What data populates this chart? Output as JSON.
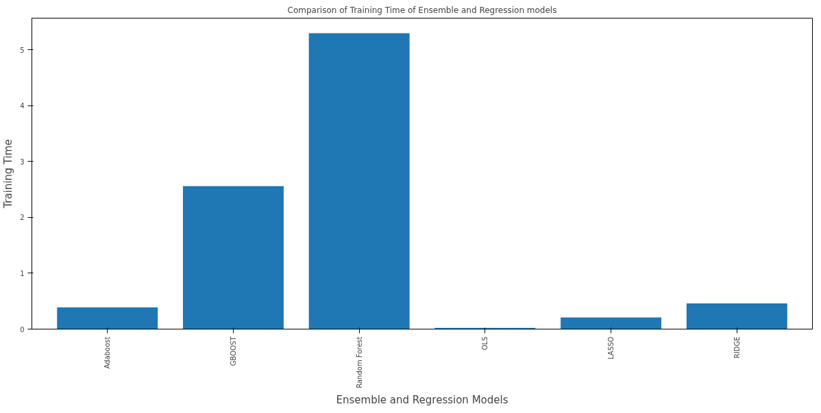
{
  "chart_data": {
    "type": "bar",
    "title": "Comparison of Training Time of Ensemble and Regression models",
    "xlabel": "Ensemble and Regression Models",
    "ylabel": "Training Time",
    "categories": [
      "Adaboost",
      "GBOOST",
      "Random Forest",
      "OLS",
      "LASSO",
      "RIDGE"
    ],
    "values": [
      0.39,
      2.56,
      5.3,
      0.02,
      0.21,
      0.46
    ],
    "color": "#1f77b4",
    "ylim": [
      0,
      5.57
    ],
    "yticks": [
      0,
      1,
      2,
      3,
      4,
      5
    ],
    "grid": false
  }
}
